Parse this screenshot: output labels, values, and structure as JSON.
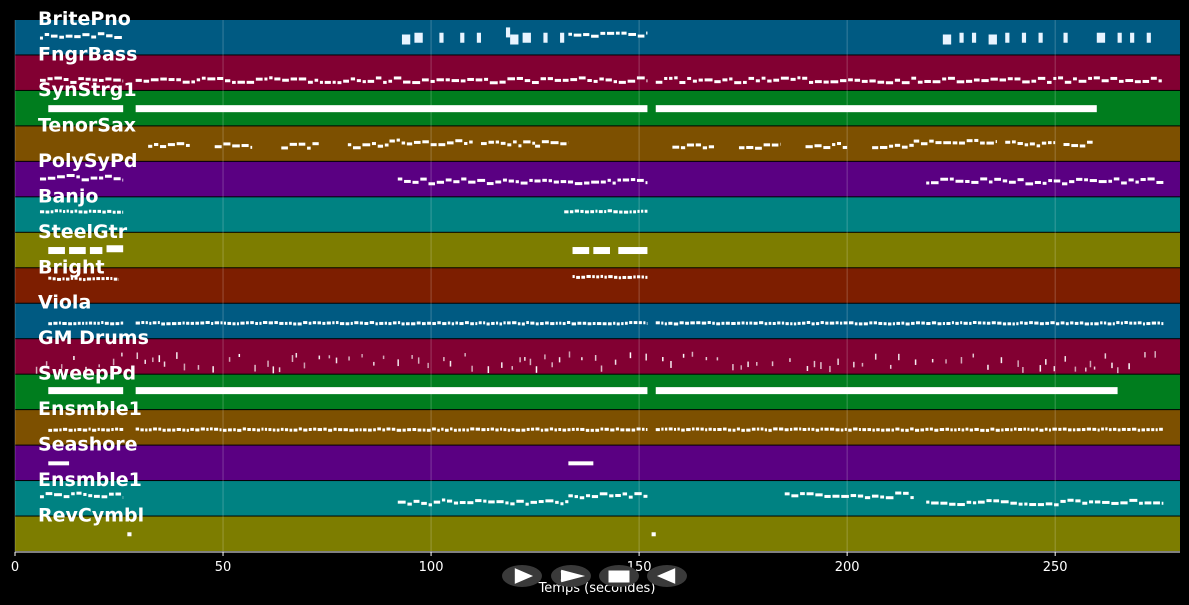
{
  "chart_data": {
    "type": "piano-roll",
    "title": "",
    "xlabel": "Temps (secondes)",
    "xlim": [
      0,
      280
    ],
    "x_ticks": [
      0,
      50,
      100,
      150,
      200,
      250
    ],
    "grid": true,
    "tracks": [
      {
        "name": "BritePno",
        "color": "#005a82",
        "notes": [
          [
            6,
            26,
            0.45,
            "b"
          ],
          [
            93,
            95,
            0.55,
            "s"
          ],
          [
            96,
            98,
            0.5,
            "s"
          ],
          [
            102,
            103,
            0.5,
            "s"
          ],
          [
            107,
            108,
            0.5,
            "s"
          ],
          [
            111,
            112,
            0.5,
            "s"
          ],
          [
            118,
            119,
            0.35,
            "s"
          ],
          [
            119,
            121,
            0.55,
            "s"
          ],
          [
            122,
            124,
            0.5,
            "s"
          ],
          [
            127,
            128,
            0.5,
            "s"
          ],
          [
            131,
            132,
            0.5,
            "s"
          ],
          [
            133,
            152,
            0.4,
            "b"
          ],
          [
            223,
            225,
            0.55,
            "s"
          ],
          [
            227,
            228,
            0.5,
            "s"
          ],
          [
            230,
            231,
            0.5,
            "s"
          ],
          [
            234,
            236,
            0.55,
            "s"
          ],
          [
            238,
            239,
            0.5,
            "s"
          ],
          [
            242,
            243,
            0.5,
            "s"
          ],
          [
            246,
            247,
            0.5,
            "s"
          ],
          [
            252,
            253,
            0.5,
            "s"
          ],
          [
            260,
            262,
            0.5,
            "s"
          ],
          [
            265,
            266,
            0.5,
            "s"
          ],
          [
            268,
            269,
            0.5,
            "s"
          ],
          [
            272,
            273,
            0.5,
            "s"
          ]
        ]
      },
      {
        "name": "FngrBass",
        "color": "#820032",
        "notes": [
          [
            6,
            26,
            0.7,
            "b"
          ],
          [
            29,
            152,
            0.7,
            "b"
          ],
          [
            154,
            276,
            0.7,
            "b"
          ]
        ]
      },
      {
        "name": "SynStrg1",
        "color": "#007d1e",
        "notes": [
          [
            8,
            26,
            0.5,
            "t"
          ],
          [
            29,
            152,
            0.5,
            "t"
          ],
          [
            154,
            260,
            0.5,
            "t"
          ]
        ]
      },
      {
        "name": "TenorSax",
        "color": "#7d5000",
        "notes": [
          [
            32,
            42,
            0.55,
            "b"
          ],
          [
            48,
            57,
            0.55,
            "b"
          ],
          [
            64,
            73,
            0.55,
            "b"
          ],
          [
            80,
            90,
            0.55,
            "b"
          ],
          [
            90,
            110,
            0.45,
            "b"
          ],
          [
            112,
            125,
            0.5,
            "b"
          ],
          [
            125,
            133,
            0.5,
            "b"
          ],
          [
            158,
            168,
            0.55,
            "b"
          ],
          [
            174,
            184,
            0.55,
            "b"
          ],
          [
            190,
            200,
            0.55,
            "b"
          ],
          [
            206,
            216,
            0.55,
            "b"
          ],
          [
            216,
            236,
            0.45,
            "b"
          ],
          [
            238,
            250,
            0.5,
            "b"
          ],
          [
            252,
            259,
            0.5,
            "b"
          ]
        ]
      },
      {
        "name": "PolySyPd",
        "color": "#5a0082",
        "notes": [
          [
            6,
            26,
            0.45,
            "b"
          ],
          [
            92,
            152,
            0.55,
            "b"
          ],
          [
            219,
            276,
            0.55,
            "b"
          ]
        ]
      },
      {
        "name": "Banjo",
        "color": "#008282",
        "notes": [
          [
            6,
            26,
            0.4,
            "d"
          ],
          [
            132,
            152,
            0.4,
            "d"
          ]
        ]
      },
      {
        "name": "SteelGtr",
        "color": "#7d7d00",
        "notes": [
          [
            8,
            12,
            0.5,
            "t"
          ],
          [
            13,
            17,
            0.5,
            "t"
          ],
          [
            18,
            21,
            0.5,
            "t"
          ],
          [
            22,
            26,
            0.45,
            "t"
          ],
          [
            134,
            138,
            0.5,
            "t"
          ],
          [
            139,
            143,
            0.5,
            "t"
          ],
          [
            145,
            152,
            0.5,
            "t"
          ]
        ]
      },
      {
        "name": "Bright",
        "color": "#7d1e00",
        "notes": [
          [
            8,
            25,
            0.3,
            "d"
          ],
          [
            134,
            152,
            0.25,
            "d"
          ]
        ]
      },
      {
        "name": "Viola",
        "color": "#005a82",
        "notes": [
          [
            8,
            26,
            0.55,
            "d"
          ],
          [
            29,
            152,
            0.55,
            "d"
          ],
          [
            154,
            276,
            0.55,
            "d"
          ]
        ]
      },
      {
        "name": "GM Drums",
        "color": "#820032",
        "notes": [
          [
            5,
            276,
            0.65,
            "p"
          ]
        ]
      },
      {
        "name": "SweepPd",
        "color": "#007d1e",
        "notes": [
          [
            8,
            26,
            0.45,
            "t"
          ],
          [
            29,
            152,
            0.45,
            "t"
          ],
          [
            154,
            265,
            0.45,
            "t"
          ]
        ]
      },
      {
        "name": "Ensmble1",
        "color": "#7d5000",
        "notes": [
          [
            8,
            26,
            0.55,
            "d"
          ],
          [
            29,
            152,
            0.55,
            "d"
          ],
          [
            154,
            276,
            0.55,
            "d"
          ]
        ]
      },
      {
        "name": "Seashore",
        "color": "#5a0082",
        "notes": [
          [
            8,
            13,
            0.5,
            "m"
          ],
          [
            133,
            139,
            0.5,
            "m"
          ]
        ]
      },
      {
        "name": "Ensmble1",
        "color": "#008282",
        "notes": [
          [
            6,
            26,
            0.4,
            "b"
          ],
          [
            92,
            133,
            0.6,
            "b"
          ],
          [
            133,
            152,
            0.4,
            "b"
          ],
          [
            185,
            216,
            0.4,
            "b"
          ],
          [
            219,
            276,
            0.6,
            "b"
          ]
        ]
      },
      {
        "name": "RevCymbl",
        "color": "#7d7d00",
        "notes": [
          [
            27,
            28,
            0.5,
            "m"
          ],
          [
            153,
            154,
            0.5,
            "m"
          ]
        ]
      }
    ]
  },
  "controls": {
    "play_label": "play",
    "forward_label": "fast-forward",
    "stop_label": "stop",
    "rewind_label": "rewind"
  }
}
